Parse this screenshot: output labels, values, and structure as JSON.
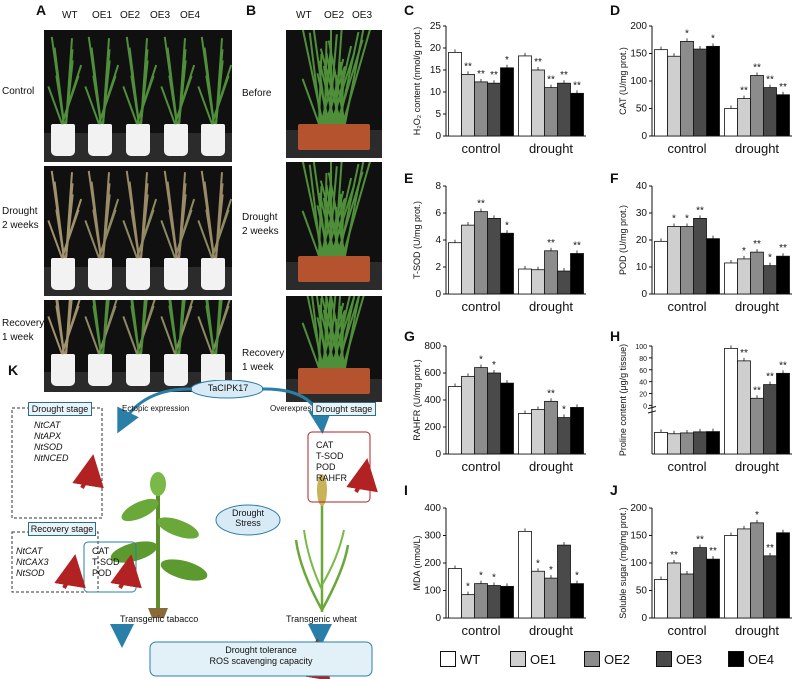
{
  "panels": {
    "A": "A",
    "B": "B",
    "C": "C",
    "D": "D",
    "E": "E",
    "F": "F",
    "G": "G",
    "H": "H",
    "I": "I",
    "J": "J",
    "K": "K"
  },
  "photoA": {
    "columns": [
      "WT",
      "OE1",
      "OE2",
      "OE3",
      "OE4"
    ],
    "rows": [
      "Control",
      "Drought",
      "2 weeks",
      "Recovery",
      "1 week"
    ]
  },
  "photoB": {
    "columns": [
      "WT",
      "OE2",
      "OE3"
    ],
    "rows": [
      "Before",
      "Drought",
      "2 weeks",
      "Recovery",
      "1 week"
    ]
  },
  "colors": {
    "WT": "#ffffff",
    "OE1": "#cfcfcf",
    "OE2": "#8c8c8c",
    "OE3": "#4a4a4a",
    "OE4": "#000000",
    "arrow": "#b22222",
    "flow": "#2a7fa8"
  },
  "legend": [
    "WT",
    "OE1",
    "OE2",
    "OE3",
    "OE4"
  ],
  "chart_data": [
    {
      "id": "C",
      "type": "bar",
      "categories": [
        "control",
        "drought"
      ],
      "ylabel": "H₂O₂ content (nmol/g prot.)",
      "ylim": [
        0,
        25
      ],
      "yticks": [
        0,
        5,
        10,
        15,
        20,
        25
      ],
      "series": [
        {
          "name": "WT",
          "values": [
            19,
            18.2
          ]
        },
        {
          "name": "OE1",
          "values": [
            14,
            15
          ]
        },
        {
          "name": "OE2",
          "values": [
            12.3,
            11
          ]
        },
        {
          "name": "OE3",
          "values": [
            12,
            12
          ]
        },
        {
          "name": "OE4",
          "values": [
            15.5,
            9.7
          ]
        }
      ],
      "sig": [
        [
          "",
          "**",
          "**",
          "**",
          "*"
        ],
        [
          "",
          "**",
          "**",
          "**",
          "**"
        ]
      ]
    },
    {
      "id": "D",
      "type": "bar",
      "categories": [
        "control",
        "drought"
      ],
      "ylabel": "CAT (U/mg prot.)",
      "ylim": [
        0,
        200
      ],
      "yticks": [
        0,
        50,
        100,
        150,
        200
      ],
      "series": [
        {
          "name": "WT",
          "values": [
            157,
            50
          ]
        },
        {
          "name": "OE1",
          "values": [
            145,
            68
          ]
        },
        {
          "name": "OE2",
          "values": [
            172,
            110
          ]
        },
        {
          "name": "OE3",
          "values": [
            158,
            88
          ]
        },
        {
          "name": "OE4",
          "values": [
            163,
            75
          ]
        }
      ],
      "sig": [
        [
          "",
          "",
          "*",
          "",
          "*"
        ],
        [
          "",
          "**",
          "**",
          "**",
          "**"
        ]
      ]
    },
    {
      "id": "E",
      "type": "bar",
      "categories": [
        "control",
        "drought"
      ],
      "ylabel": "T-SOD (U/mg prot.)",
      "ylim": [
        0,
        8
      ],
      "yticks": [
        0,
        2,
        4,
        6,
        8
      ],
      "series": [
        {
          "name": "WT",
          "values": [
            3.8,
            1.85
          ]
        },
        {
          "name": "OE1",
          "values": [
            5.1,
            1.8
          ]
        },
        {
          "name": "OE2",
          "values": [
            6.1,
            3.2
          ]
        },
        {
          "name": "OE3",
          "values": [
            5.6,
            1.7
          ]
        },
        {
          "name": "OE4",
          "values": [
            4.5,
            3.0
          ]
        }
      ],
      "sig": [
        [
          "",
          "",
          "**",
          "",
          "*"
        ],
        [
          "",
          "",
          "**",
          "",
          "**"
        ]
      ]
    },
    {
      "id": "F",
      "type": "bar",
      "categories": [
        "control",
        "drought"
      ],
      "ylabel": "POD (U/mg prot.)",
      "ylim": [
        0,
        40
      ],
      "yticks": [
        0,
        10,
        20,
        30,
        40
      ],
      "series": [
        {
          "name": "WT",
          "values": [
            19.5,
            11.5
          ]
        },
        {
          "name": "OE1",
          "values": [
            25,
            13
          ]
        },
        {
          "name": "OE2",
          "values": [
            25,
            15.5
          ]
        },
        {
          "name": "OE3",
          "values": [
            28,
            10.5
          ]
        },
        {
          "name": "OE4",
          "values": [
            20.5,
            14
          ]
        }
      ],
      "sig": [
        [
          "",
          "*",
          "*",
          "**",
          ""
        ],
        [
          "",
          "*",
          "**",
          "*",
          "**"
        ]
      ]
    },
    {
      "id": "G",
      "type": "bar",
      "categories": [
        "control",
        "drought"
      ],
      "ylabel": "RAHFR (U/mg prot.)",
      "ylim": [
        0,
        800
      ],
      "yticks": [
        0,
        200,
        400,
        600,
        800
      ],
      "series": [
        {
          "name": "WT",
          "values": [
            500,
            300
          ]
        },
        {
          "name": "OE1",
          "values": [
            575,
            330
          ]
        },
        {
          "name": "OE2",
          "values": [
            640,
            390
          ]
        },
        {
          "name": "OE3",
          "values": [
            600,
            270
          ]
        },
        {
          "name": "OE4",
          "values": [
            525,
            345
          ]
        }
      ],
      "sig": [
        [
          "",
          "",
          "*",
          "*",
          ""
        ],
        [
          "",
          "",
          "**",
          "*",
          ""
        ]
      ]
    },
    {
      "id": "H",
      "type": "bar",
      "categories": [
        "control",
        "drought"
      ],
      "ylabel": "Proline content (μg/g tissue)",
      "ylim_upper": [
        0,
        100
      ],
      "yticks_upper": [
        0,
        20,
        40,
        60,
        80,
        100
      ],
      "series": [
        {
          "name": "WT",
          "values": [
            8,
            96
          ]
        },
        {
          "name": "OE1",
          "values": [
            7.5,
            75
          ]
        },
        {
          "name": "OE2",
          "values": [
            7.8,
            12
          ]
        },
        {
          "name": "OE3",
          "values": [
            8.2,
            35
          ]
        },
        {
          "name": "OE4",
          "values": [
            8.3,
            54
          ]
        }
      ],
      "sig": [
        [
          "",
          "",
          "",
          "",
          ""
        ],
        [
          "",
          "**",
          "**",
          "**",
          "**"
        ]
      ]
    },
    {
      "id": "I",
      "type": "bar",
      "categories": [
        "control",
        "drought"
      ],
      "ylabel": "MDA (nmol/L)",
      "ylim": [
        0,
        400
      ],
      "yticks": [
        0,
        100,
        200,
        300,
        400
      ],
      "series": [
        {
          "name": "WT",
          "values": [
            180,
            315
          ]
        },
        {
          "name": "OE1",
          "values": [
            85,
            170
          ]
        },
        {
          "name": "OE2",
          "values": [
            125,
            145
          ]
        },
        {
          "name": "OE3",
          "values": [
            118,
            265
          ]
        },
        {
          "name": "OE4",
          "values": [
            115,
            125
          ]
        }
      ],
      "sig": [
        [
          "",
          "*",
          "*",
          "*",
          ""
        ],
        [
          "",
          "*",
          "*",
          "",
          "*"
        ]
      ]
    },
    {
      "id": "J",
      "type": "bar",
      "categories": [
        "control",
        "drought"
      ],
      "ylabel": "Soluble sugar (mg/mg prot.)",
      "ylim": [
        0,
        200
      ],
      "yticks": [
        0,
        50,
        100,
        150,
        200
      ],
      "series": [
        {
          "name": "WT",
          "values": [
            70,
            150
          ]
        },
        {
          "name": "OE1",
          "values": [
            100,
            162
          ]
        },
        {
          "name": "OE2",
          "values": [
            80,
            173
          ]
        },
        {
          "name": "OE3",
          "values": [
            128,
            113
          ]
        },
        {
          "name": "OE4",
          "values": [
            107,
            155
          ]
        }
      ],
      "sig": [
        [
          "",
          "**",
          "",
          "**",
          "**"
        ],
        [
          "",
          "",
          "*",
          "**",
          ""
        ]
      ]
    }
  ],
  "diagram": {
    "gene": "TaCIPK17",
    "left_arrow": "Ectopic expression",
    "right_arrow": "Overexpression",
    "center": "Drought",
    "center2": "Stress",
    "tobacco_label": "Transgenic tabacco",
    "wheat_label": "Transgenic wheat",
    "left_drought_title": "Drought stage",
    "left_drought_items": [
      "NtCAT",
      "NtAPX",
      "NtSOD",
      "NtNCED"
    ],
    "recovery_title": "Recovery stage",
    "recovery_items": [
      "NtCAT",
      "NtCAX3",
      "NtSOD"
    ],
    "recovery_enzymes": [
      "CAT",
      "T-SOD",
      "POD"
    ],
    "right_drought_title": "Drought stage",
    "right_drought_items": [
      "CAT",
      "T-SOD",
      "POD",
      "RAHFR"
    ],
    "bottom1": "Drought tolerance",
    "bottom2": "ROS scavenging capacity"
  }
}
